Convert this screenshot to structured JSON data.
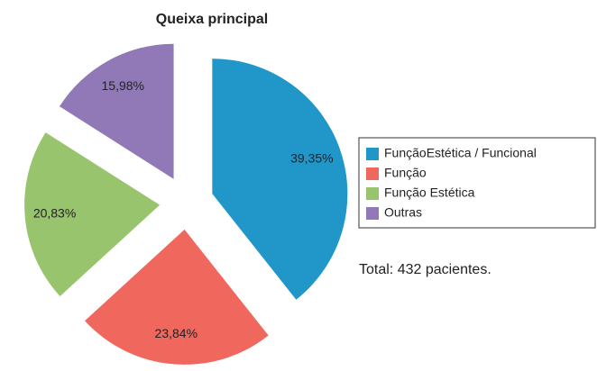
{
  "chart_data": {
    "type": "pie",
    "title": "Queixa principal",
    "categories": [
      "FunçãoEstética / Funcional",
      "Função",
      "Função Estética",
      "Outras"
    ],
    "values": [
      39.35,
      23.84,
      20.83,
      15.98
    ],
    "value_labels": [
      "39,35%",
      "23,84%",
      "20,83%",
      "15,98%"
    ],
    "colors": [
      "#2196c9",
      "#f0675e",
      "#97c46c",
      "#9079b6"
    ],
    "annotation": "Total: 432 pacientes.",
    "legend": "right",
    "exploded": true
  }
}
